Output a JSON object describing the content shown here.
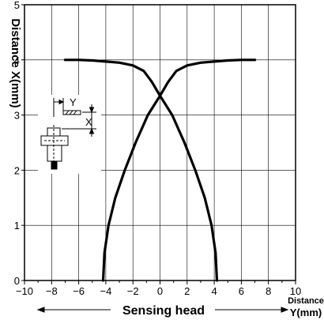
{
  "chart_data": {
    "type": "line",
    "xlabel": "Sensing head",
    "ylabel": "Distance X(mm)",
    "xlabel_right_line1": "Distance",
    "xlabel_right_line2": "Y(mm)",
    "xlim": [
      -10,
      10
    ],
    "ylim": [
      0,
      5
    ],
    "x_ticks": [
      -10,
      -8,
      -6,
      -4,
      -2,
      0,
      2,
      4,
      6,
      8,
      10
    ],
    "x_tick_labels": [
      "−10",
      "−8",
      "−6",
      "−4",
      "−2",
      "0",
      "2",
      "4",
      "6",
      "8",
      "10"
    ],
    "y_ticks": [
      0,
      1,
      2,
      3,
      4,
      5
    ],
    "y_tick_labels": [
      "0",
      "1",
      "2",
      "3",
      "4",
      "5"
    ],
    "grid": true,
    "inset_labels": {
      "y": "Y",
      "x": "X"
    },
    "series": [
      {
        "x": [
          -4.2,
          -4.1,
          -3.8,
          -3.3,
          -2.6,
          -1.8,
          -0.9,
          0,
          0.6,
          1.2,
          2.0,
          3.0,
          4.0,
          5.0,
          6.0,
          7.0
        ],
        "y": [
          0,
          0.5,
          1.0,
          1.5,
          2.0,
          2.5,
          3.0,
          3.35,
          3.6,
          3.8,
          3.9,
          3.95,
          3.97,
          3.99,
          4.0,
          4.0
        ]
      },
      {
        "x": [
          4.2,
          4.1,
          3.8,
          3.3,
          2.6,
          1.8,
          0.9,
          0,
          -0.6,
          -1.2,
          -2.0,
          -3.0,
          -4.0,
          -5.0,
          -6.0,
          -7.0
        ],
        "y": [
          0,
          0.5,
          1.0,
          1.5,
          2.0,
          2.5,
          3.0,
          3.35,
          3.6,
          3.8,
          3.9,
          3.95,
          3.97,
          3.99,
          4.0,
          4.0
        ]
      }
    ]
  }
}
